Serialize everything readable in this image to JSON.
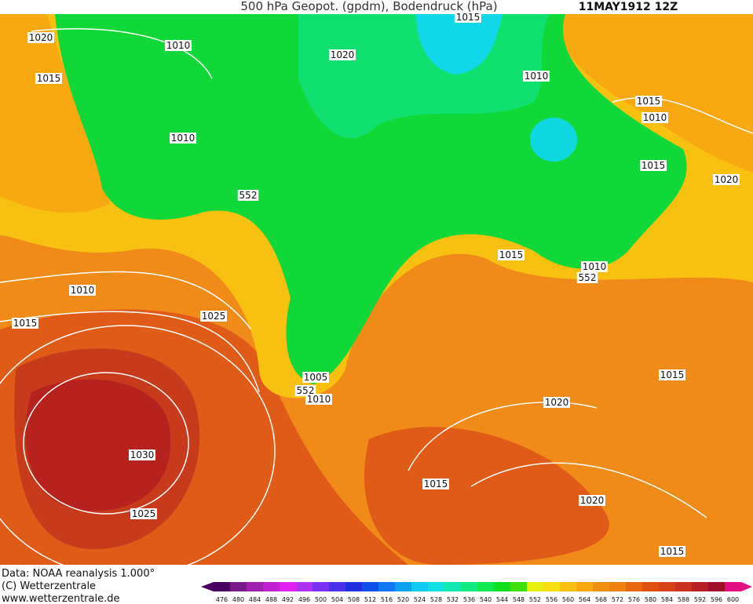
{
  "header": {
    "title": "500 hPa Geopot. (gpdm), Bodendruck (hPa)",
    "date": "11MAY1912 12Z"
  },
  "map": {
    "isobar_labels": [
      1020,
      1010,
      1015,
      1020,
      1015,
      1010,
      1015,
      1010,
      1010,
      1015,
      1020,
      552,
      1015,
      1010,
      552,
      1010,
      1015,
      1025,
      1005,
      552,
      1010,
      1015,
      1020,
      1030,
      1015,
      1020,
      1025,
      1015
    ]
  },
  "footer": {
    "lines": [
      "Data: NOAA reanalysis 1.000°",
      "(C) Wetterzentrale",
      "www.wetterzentrale.de"
    ]
  },
  "legend": {
    "levels": [
      476,
      480,
      484,
      488,
      492,
      496,
      500,
      504,
      508,
      512,
      516,
      520,
      524,
      528,
      532,
      536,
      540,
      544,
      548,
      552,
      556,
      560,
      564,
      568,
      572,
      576,
      580,
      584,
      588,
      592,
      596,
      600
    ],
    "colors": [
      "#4a0060",
      "#7a1a8a",
      "#a020b0",
      "#c020d0",
      "#e020f0",
      "#b030f0",
      "#7a30f0",
      "#4a30e8",
      "#2030e0",
      "#1050e8",
      "#1078f0",
      "#10a0f0",
      "#10c8f0",
      "#10e0e0",
      "#10e8b0",
      "#10e880",
      "#10e850",
      "#10e020",
      "#40e010",
      "#e8f010",
      "#f8e010",
      "#f8c010",
      "#f8a810",
      "#f09010",
      "#f08010",
      "#e86810",
      "#e05010",
      "#d84018",
      "#c83020",
      "#b82028",
      "#a01028",
      "#e01080"
    ]
  }
}
